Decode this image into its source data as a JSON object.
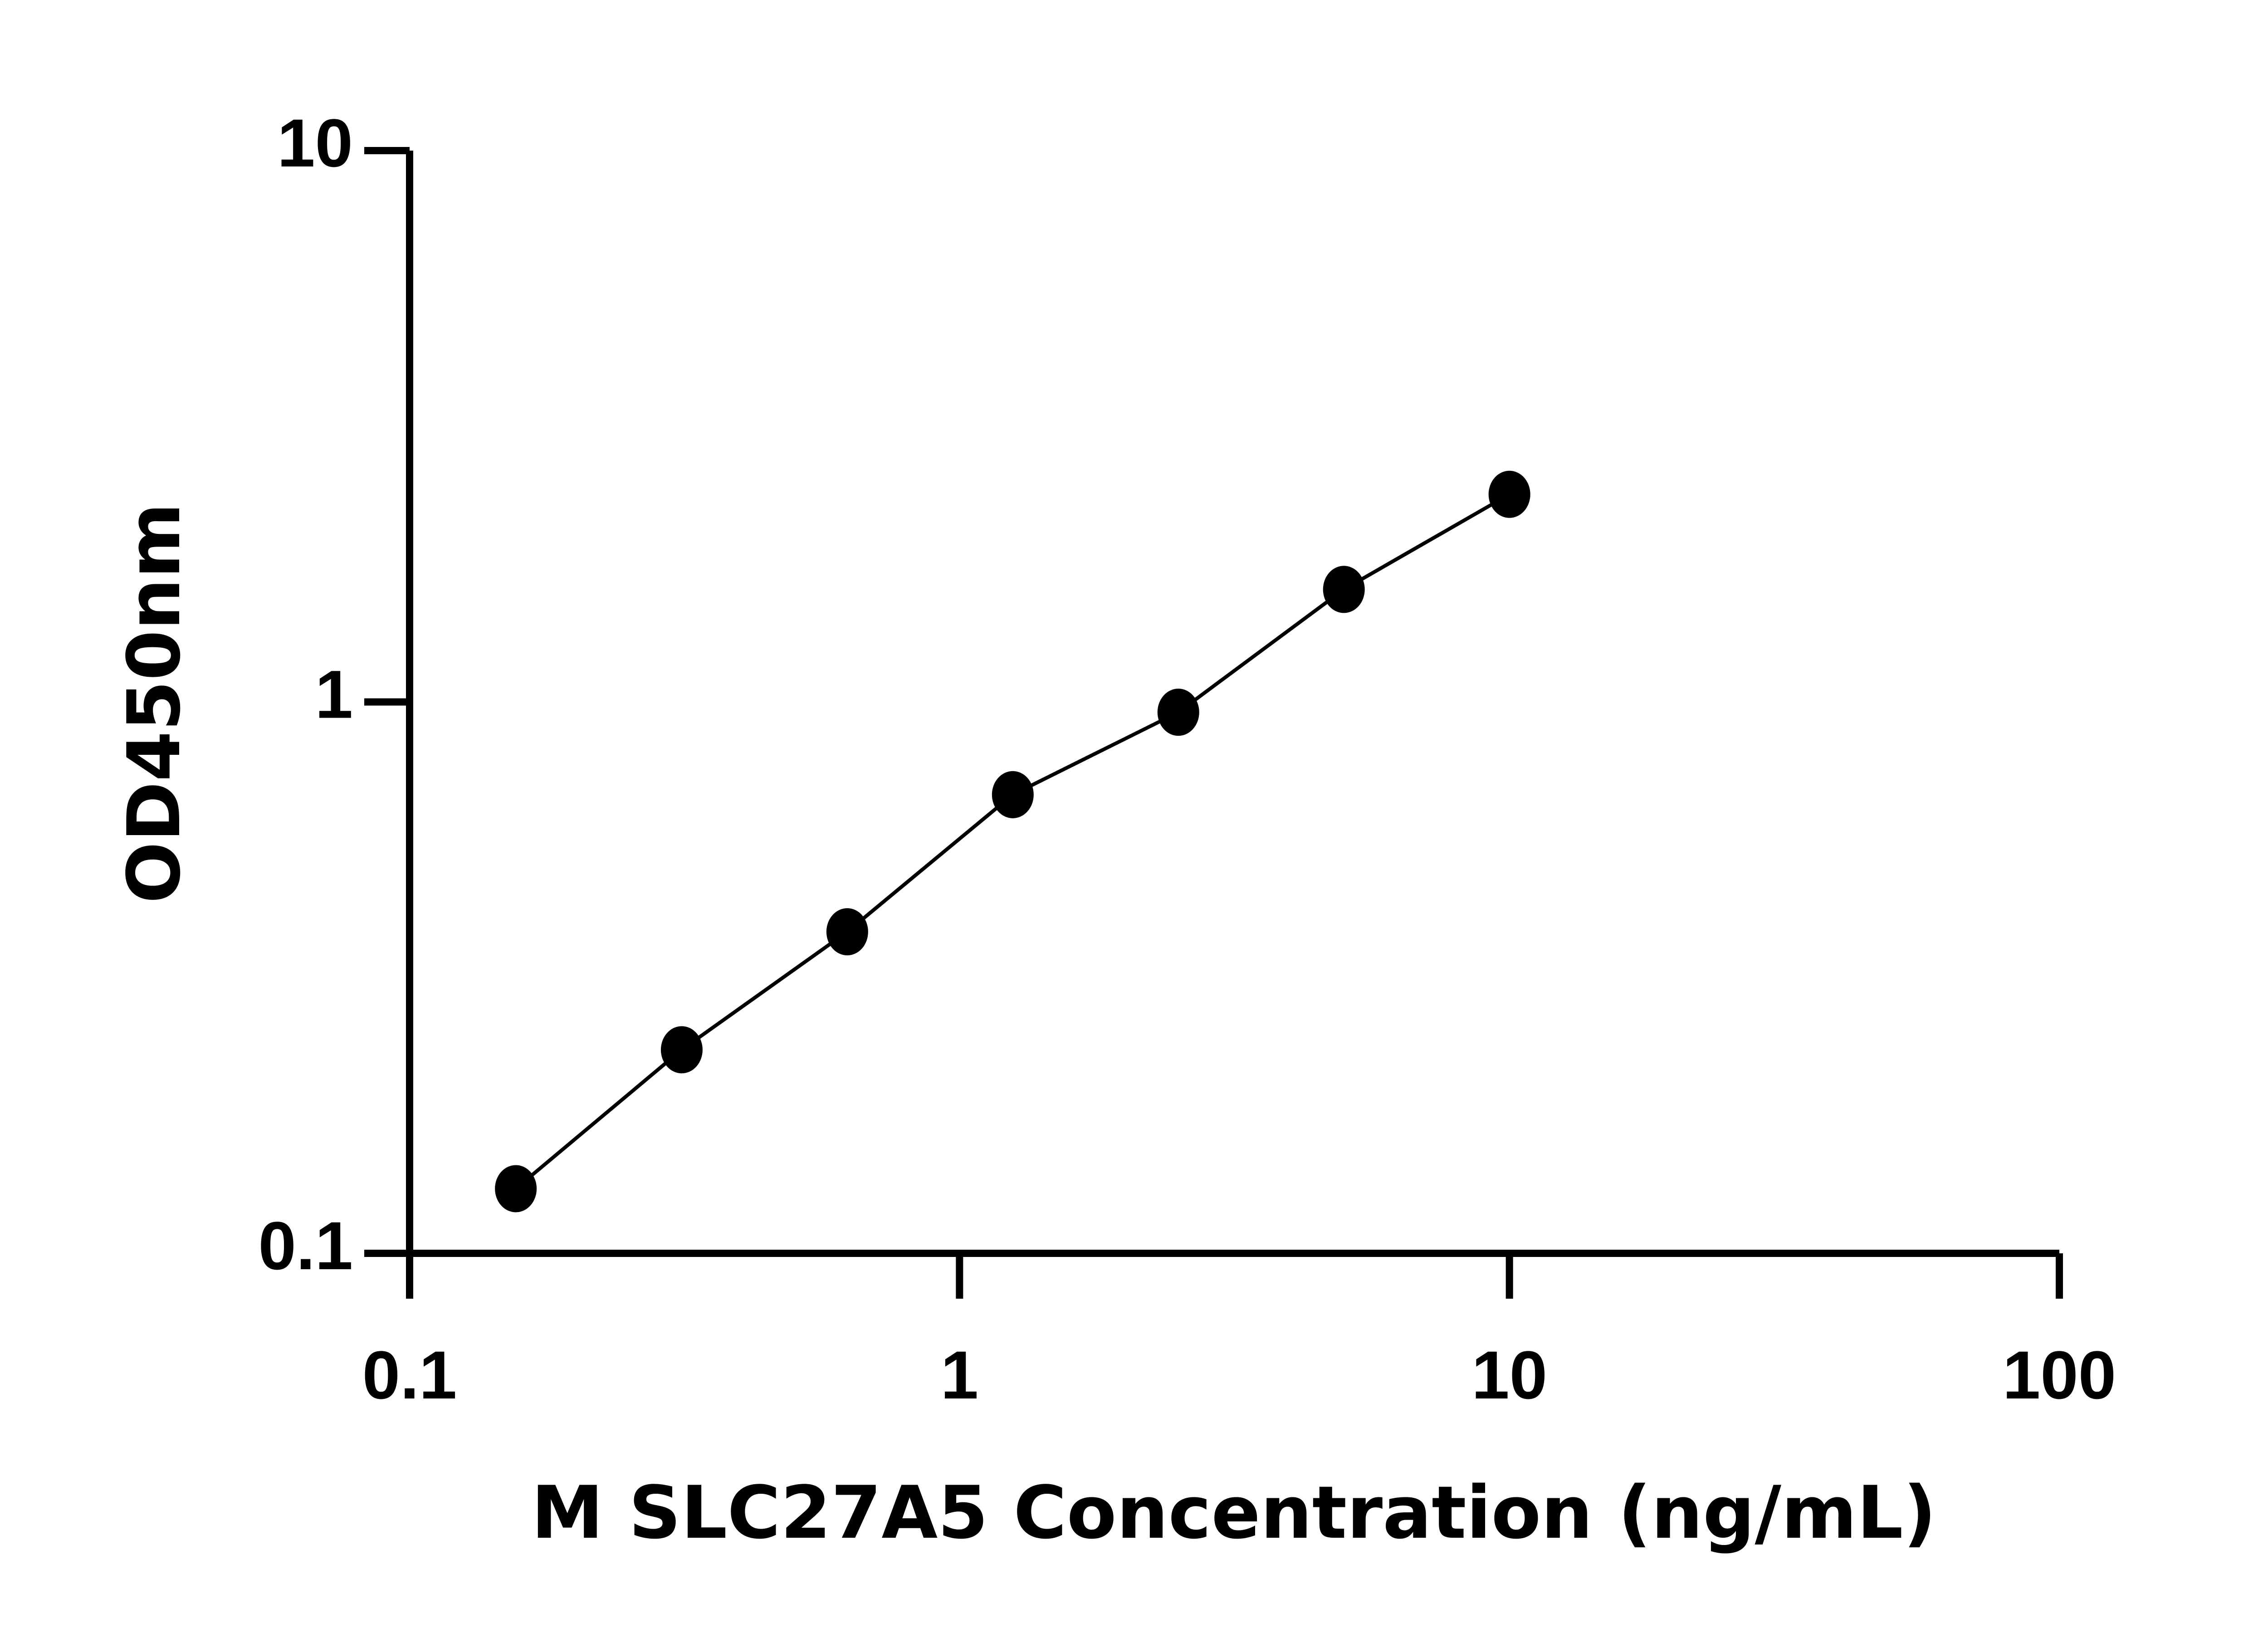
{
  "chart_data": {
    "type": "line",
    "title": "",
    "xlabel": "M SLC27A5 Concentration (ng/mL)",
    "ylabel": "OD450nm",
    "x_scale": "log",
    "y_scale": "log",
    "xlim": [
      0.1,
      100
    ],
    "ylim": [
      0.1,
      10
    ],
    "x_ticks": [
      "0.1",
      "1",
      "10",
      "100"
    ],
    "y_ticks": [
      "0.1",
      "1",
      "10"
    ],
    "grid": false,
    "series": [
      {
        "x": [
          0.156,
          0.3125,
          0.625,
          1.25,
          2.5,
          5,
          10
        ],
        "y": [
          0.131,
          0.234,
          0.383,
          0.679,
          0.958,
          1.6,
          2.38
        ],
        "color": "#000000",
        "marker": "circle"
      }
    ]
  }
}
